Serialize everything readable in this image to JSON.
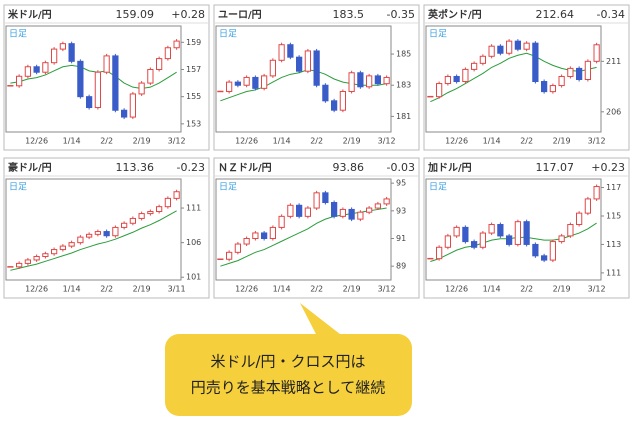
{
  "chart_data": [
    {
      "type": "candlestick",
      "title": "米ドル/円",
      "price": 159.09,
      "change": "+0.28",
      "change_color": "#e0303a",
      "period_label": "日足",
      "categories": [
        null,
        null,
        null,
        "12/26",
        null,
        null,
        null,
        "1/14",
        null,
        null,
        null,
        "2/2",
        null,
        null,
        null,
        "2/19",
        null,
        null,
        null,
        "3/12"
      ],
      "values": [
        155.8,
        156.5,
        157.2,
        156.8,
        157.5,
        158.5,
        158.9,
        157.6,
        155.0,
        154.2,
        156.8,
        158.0,
        154.0,
        153.5,
        155.2,
        156.0,
        157.0,
        157.8,
        158.6,
        159.09
      ],
      "ma": [
        156.0,
        156.1,
        156.3,
        156.4,
        156.6,
        156.9,
        157.2,
        157.3,
        157.2,
        156.9,
        156.8,
        156.9,
        156.5,
        156.0,
        155.7,
        155.6,
        155.7,
        156.0,
        156.4,
        156.8
      ],
      "up_color": "#e04848",
      "down_color": "#3a5cc8",
      "ma_color": "#2a9d3a",
      "ylim": [
        152.4,
        160.2
      ],
      "yticks": [
        153,
        155,
        157,
        159
      ]
    },
    {
      "type": "candlestick",
      "title": "ユーロ/円",
      "price": 183.5,
      "change": "-0.35",
      "change_color": "#2fa84f",
      "period_label": "日足",
      "categories": [
        null,
        null,
        null,
        "12/26",
        null,
        null,
        null,
        "1/14",
        null,
        null,
        null,
        "2/2",
        null,
        null,
        null,
        "2/19",
        null,
        null,
        null,
        "3/12"
      ],
      "values": [
        182.6,
        183.2,
        183.0,
        183.5,
        182.8,
        183.6,
        184.6,
        185.6,
        184.8,
        183.9,
        185.2,
        183.0,
        182.0,
        181.4,
        182.6,
        183.8,
        182.9,
        183.6,
        183.1,
        183.5
      ],
      "ma": [
        182.0,
        182.2,
        182.4,
        182.6,
        182.7,
        182.9,
        183.2,
        183.5,
        183.7,
        183.8,
        184.0,
        183.9,
        183.7,
        183.4,
        183.2,
        183.1,
        183.0,
        183.0,
        183.0,
        183.1
      ],
      "up_color": "#e04848",
      "down_color": "#3a5cc8",
      "ma_color": "#2a9d3a",
      "ylim": [
        180.0,
        186.8
      ],
      "yticks": [
        181,
        183,
        185
      ]
    },
    {
      "type": "candlestick",
      "title": "英ポンド/円",
      "price": 212.64,
      "change": "-0.34",
      "change_color": "#2fa84f",
      "period_label": "日足",
      "categories": [
        null,
        null,
        null,
        "12/26",
        null,
        null,
        null,
        "1/14",
        null,
        null,
        null,
        "2/2",
        null,
        null,
        null,
        "2/19",
        null,
        null,
        null,
        "3/12"
      ],
      "values": [
        207.5,
        208.8,
        209.5,
        209.0,
        210.2,
        210.8,
        211.5,
        212.5,
        211.8,
        213.0,
        212.2,
        212.8,
        209.0,
        208.0,
        208.6,
        209.5,
        210.3,
        209.2,
        211.0,
        212.64
      ],
      "ma": [
        207.0,
        207.4,
        207.9,
        208.3,
        208.8,
        209.3,
        209.8,
        210.4,
        210.8,
        211.3,
        211.6,
        211.8,
        211.5,
        211.0,
        210.6,
        210.3,
        210.1,
        210.0,
        210.2,
        210.4
      ],
      "up_color": "#e04848",
      "down_color": "#3a5cc8",
      "ma_color": "#2a9d3a",
      "ylim": [
        204.0,
        214.5
      ],
      "yticks": [
        206,
        211
      ]
    },
    {
      "type": "candlestick",
      "title": "豪ドル/円",
      "price": 113.36,
      "change": "-0.23",
      "change_color": "#2fa84f",
      "period_label": "日足",
      "categories": [
        null,
        null,
        null,
        "12/26",
        null,
        null,
        null,
        "1/14",
        null,
        null,
        null,
        "2/2",
        null,
        null,
        null,
        "2/19",
        null,
        null,
        null,
        "3/11"
      ],
      "values": [
        102.5,
        103.0,
        103.5,
        104.0,
        104.4,
        105.0,
        105.5,
        106.0,
        106.8,
        107.2,
        107.6,
        107.0,
        108.2,
        108.8,
        109.5,
        110.2,
        110.5,
        111.2,
        112.4,
        113.36
      ],
      "ma": [
        102.0,
        102.3,
        102.6,
        102.9,
        103.3,
        103.7,
        104.1,
        104.5,
        105.0,
        105.4,
        105.8,
        106.1,
        106.5,
        107.0,
        107.5,
        108.1,
        108.6,
        109.2,
        109.9,
        110.6
      ],
      "up_color": "#e04848",
      "down_color": "#3a5cc8",
      "ma_color": "#2a9d3a",
      "ylim": [
        100.6,
        115.2
      ],
      "yticks": [
        101,
        106,
        111
      ]
    },
    {
      "type": "candlestick",
      "title": "ＮＺドル/円",
      "price": 93.86,
      "change": "-0.03",
      "change_color": "#2fa84f",
      "period_label": "日足",
      "categories": [
        null,
        null,
        null,
        "12/26",
        null,
        null,
        null,
        "1/14",
        null,
        null,
        null,
        "2/2",
        null,
        null,
        null,
        "2/19",
        null,
        null,
        null,
        "3/12"
      ],
      "values": [
        89.5,
        90.0,
        90.6,
        91.0,
        91.4,
        91.0,
        91.8,
        92.6,
        93.4,
        92.6,
        93.2,
        94.3,
        93.6,
        92.6,
        93.1,
        92.4,
        92.9,
        93.2,
        93.5,
        93.86
      ],
      "ma": [
        89.0,
        89.2,
        89.4,
        89.7,
        90.0,
        90.2,
        90.5,
        90.8,
        91.1,
        91.4,
        91.7,
        92.1,
        92.4,
        92.6,
        92.7,
        92.8,
        92.9,
        93.0,
        93.1,
        93.2
      ],
      "up_color": "#e04848",
      "down_color": "#3a5cc8",
      "ma_color": "#2a9d3a",
      "ylim": [
        88.0,
        95.3
      ],
      "yticks": [
        89,
        91,
        93,
        95
      ]
    },
    {
      "type": "candlestick",
      "title": "加ドル/円",
      "price": 117.07,
      "change": "+0.23",
      "change_color": "#e0303a",
      "period_label": "日足",
      "categories": [
        null,
        null,
        null,
        "12/26",
        null,
        null,
        null,
        "1/14",
        null,
        null,
        null,
        "2/2",
        null,
        null,
        null,
        "2/19",
        null,
        null,
        null,
        "3/12"
      ],
      "values": [
        112.0,
        112.8,
        113.6,
        114.2,
        113.2,
        112.8,
        113.8,
        114.4,
        113.6,
        113.0,
        114.6,
        113.0,
        112.2,
        111.9,
        113.2,
        113.6,
        114.4,
        115.2,
        116.2,
        117.07
      ],
      "ma": [
        111.8,
        112.0,
        112.3,
        112.6,
        112.8,
        112.9,
        113.1,
        113.3,
        113.4,
        113.4,
        113.5,
        113.5,
        113.4,
        113.3,
        113.3,
        113.4,
        113.6,
        113.8,
        114.1,
        114.5
      ],
      "up_color": "#e04848",
      "down_color": "#3a5cc8",
      "ma_color": "#2a9d3a",
      "ylim": [
        110.5,
        117.6
      ],
      "yticks": [
        111,
        113,
        115,
        117
      ]
    }
  ],
  "callout": {
    "lines": [
      "米ドル/円・クロス円は",
      "円売りを基本戦略として継続"
    ]
  }
}
